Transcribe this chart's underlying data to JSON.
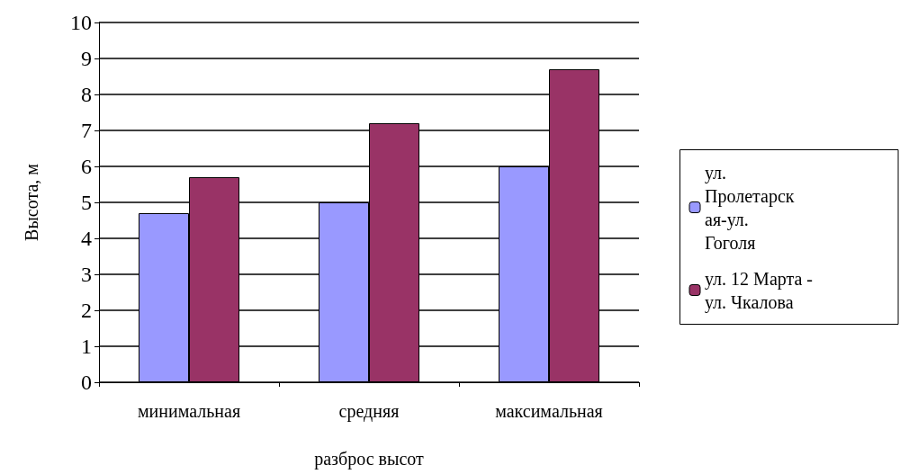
{
  "chart_data": {
    "type": "bar",
    "xlabel": "разброс высот",
    "ylabel": "Высота, м",
    "categories": [
      "минимальная",
      "средняя",
      "максимальная"
    ],
    "series": [
      {
        "name": "ул. Пролетарская-ул. Гоголя",
        "color": "#9999ff",
        "values": [
          4.7,
          5.0,
          6.0
        ]
      },
      {
        "name": "ул. 12 Марта - ул. Чкалова",
        "color": "#993366",
        "values": [
          5.7,
          7.2,
          8.7
        ]
      }
    ],
    "ylim": [
      0,
      10
    ],
    "yticks": [
      0,
      1,
      2,
      3,
      4,
      5,
      6,
      7,
      8,
      9,
      10
    ],
    "grid": "y",
    "legend": "right"
  }
}
